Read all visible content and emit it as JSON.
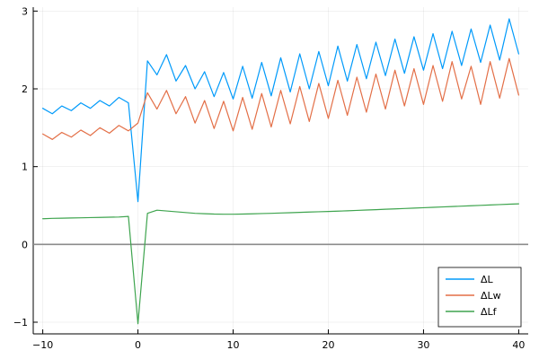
{
  "chart_data": {
    "type": "line",
    "xlim": [
      -11,
      41
    ],
    "ylim": [
      -1.15,
      3.05
    ],
    "xticks": [
      -10,
      0,
      10,
      20,
      30,
      40
    ],
    "xtick_labels": [
      "−10",
      "0",
      "10",
      "20",
      "30",
      "40"
    ],
    "yticks": [
      -1,
      0,
      1,
      2,
      3
    ],
    "ytick_labels": [
      "−1",
      "0",
      "1",
      "2",
      "3"
    ],
    "grid": true,
    "legend_position": "bottom-right",
    "reference_line": {
      "y": 0,
      "color": "#8c8c8c"
    },
    "x": [
      -10,
      -9,
      -8,
      -7,
      -6,
      -5,
      -4,
      -3,
      -2,
      -1,
      0,
      1,
      2,
      3,
      4,
      5,
      6,
      7,
      8,
      9,
      10,
      11,
      12,
      13,
      14,
      15,
      16,
      17,
      18,
      19,
      20,
      21,
      22,
      23,
      24,
      25,
      26,
      27,
      28,
      29,
      30,
      31,
      32,
      33,
      34,
      35,
      36,
      37,
      38,
      39,
      40
    ],
    "series": [
      {
        "name": "ΔL",
        "color": "#009AFA",
        "values": [
          1.75,
          1.68,
          1.78,
          1.72,
          1.82,
          1.75,
          1.85,
          1.78,
          1.89,
          1.82,
          0.55,
          2.36,
          2.18,
          2.44,
          2.1,
          2.3,
          2.0,
          2.22,
          1.9,
          2.21,
          1.87,
          2.29,
          1.88,
          2.34,
          1.91,
          2.4,
          1.96,
          2.45,
          2.0,
          2.48,
          2.04,
          2.55,
          2.1,
          2.57,
          2.13,
          2.6,
          2.17,
          2.64,
          2.2,
          2.67,
          2.24,
          2.71,
          2.26,
          2.74,
          2.3,
          2.77,
          2.34,
          2.82,
          2.37,
          2.9,
          2.45
        ]
      },
      {
        "name": "ΔLw",
        "color": "#E36F47",
        "values": [
          1.42,
          1.35,
          1.44,
          1.38,
          1.47,
          1.4,
          1.5,
          1.43,
          1.53,
          1.46,
          1.56,
          1.95,
          1.74,
          1.98,
          1.68,
          1.9,
          1.56,
          1.85,
          1.49,
          1.84,
          1.46,
          1.89,
          1.48,
          1.94,
          1.51,
          1.98,
          1.55,
          2.03,
          1.58,
          2.07,
          1.62,
          2.11,
          1.66,
          2.15,
          1.7,
          2.19,
          1.74,
          2.24,
          1.78,
          2.26,
          1.8,
          2.3,
          1.84,
          2.35,
          1.87,
          2.29,
          1.8,
          2.35,
          1.88,
          2.39,
          1.92
        ]
      },
      {
        "name": "ΔLf",
        "color": "#3EA44E",
        "values": [
          0.33,
          0.335,
          0.337,
          0.34,
          0.342,
          0.345,
          0.347,
          0.35,
          0.352,
          0.36,
          -1.02,
          0.4,
          0.44,
          0.43,
          0.42,
          0.41,
          0.4,
          0.395,
          0.39,
          0.388,
          0.388,
          0.39,
          0.393,
          0.397,
          0.4,
          0.404,
          0.408,
          0.412,
          0.416,
          0.42,
          0.424,
          0.428,
          0.432,
          0.437,
          0.442,
          0.447,
          0.452,
          0.457,
          0.462,
          0.467,
          0.472,
          0.477,
          0.482,
          0.487,
          0.492,
          0.497,
          0.502,
          0.507,
          0.512,
          0.517,
          0.522
        ]
      }
    ]
  }
}
